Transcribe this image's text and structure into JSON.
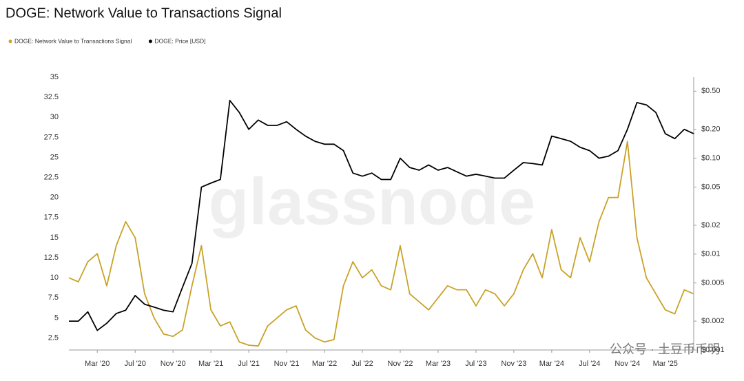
{
  "chart_data": {
    "type": "line",
    "title": "DOGE: Network Value to Transactions Signal",
    "watermark": "glassnode",
    "source_watermark": "公众号 · 土豆币币明",
    "legend": "top-left",
    "grid": false,
    "y2log": true,
    "x": [
      "2019-12",
      "2020-01",
      "2020-02",
      "2020-03",
      "2020-04",
      "2020-05",
      "2020-06",
      "2020-07",
      "2020-08",
      "2020-09",
      "2020-10",
      "2020-11",
      "2020-12",
      "2021-01",
      "2021-02",
      "2021-03",
      "2021-04",
      "2021-05",
      "2021-06",
      "2021-07",
      "2021-08",
      "2021-09",
      "2021-10",
      "2021-11",
      "2021-12",
      "2022-01",
      "2022-02",
      "2022-03",
      "2022-04",
      "2022-05",
      "2022-06",
      "2022-07",
      "2022-08",
      "2022-09",
      "2022-10",
      "2022-11",
      "2022-12",
      "2023-01",
      "2023-02",
      "2023-03",
      "2023-04",
      "2023-05",
      "2023-06",
      "2023-07",
      "2023-08",
      "2023-09",
      "2023-10",
      "2023-11",
      "2023-12",
      "2024-01",
      "2024-02",
      "2024-03",
      "2024-04",
      "2024-05",
      "2024-06",
      "2024-07",
      "2024-08",
      "2024-09",
      "2024-10",
      "2024-11",
      "2024-12",
      "2025-01",
      "2025-02",
      "2025-03",
      "2025-04",
      "2025-05",
      "2025-06"
    ],
    "xlim": [
      "2019-12",
      "2025-06"
    ],
    "xticks": [
      {
        "value": "2020-03",
        "label": "Mar '20"
      },
      {
        "value": "2020-07",
        "label": "Jul '20"
      },
      {
        "value": "2020-11",
        "label": "Nov '20"
      },
      {
        "value": "2021-03",
        "label": "Mar '21"
      },
      {
        "value": "2021-07",
        "label": "Jul '21"
      },
      {
        "value": "2021-11",
        "label": "Nov '21"
      },
      {
        "value": "2022-03",
        "label": "Mar '22"
      },
      {
        "value": "2022-07",
        "label": "Jul '22"
      },
      {
        "value": "2022-11",
        "label": "Nov '22"
      },
      {
        "value": "2023-03",
        "label": "Mar '23"
      },
      {
        "value": "2023-07",
        "label": "Jul '23"
      },
      {
        "value": "2023-11",
        "label": "Nov '23"
      },
      {
        "value": "2024-03",
        "label": "Mar '24"
      },
      {
        "value": "2024-07",
        "label": "Jul '24"
      },
      {
        "value": "2024-11",
        "label": "Nov '24"
      },
      {
        "value": "2025-03",
        "label": "Mar '25"
      }
    ],
    "ylim": [
      1,
      35
    ],
    "yticks": [
      2.5,
      5,
      7.5,
      10,
      12.5,
      15,
      17.5,
      20,
      22.5,
      25,
      27.5,
      30,
      32.5,
      35
    ],
    "y2lim": [
      0.001,
      0.7
    ],
    "y2ticks": [
      {
        "value": 0.001,
        "label": "$0.001"
      },
      {
        "value": 0.002,
        "label": "$0.002"
      },
      {
        "value": 0.005,
        "label": "$0.005"
      },
      {
        "value": 0.01,
        "label": "$0.01"
      },
      {
        "value": 0.02,
        "label": "$0.02"
      },
      {
        "value": 0.05,
        "label": "$0.05"
      },
      {
        "value": 0.1,
        "label": "$0.10"
      },
      {
        "value": 0.2,
        "label": "$0.20"
      },
      {
        "value": 0.5,
        "label": "$0.50"
      }
    ],
    "series": [
      {
        "name": "DOGE: Network Value to Transactions Signal",
        "color": "#c9a227",
        "values": [
          10,
          9.5,
          12,
          13,
          9,
          14,
          17,
          15,
          8,
          5,
          3,
          2.7,
          3.5,
          9,
          14,
          6,
          4,
          4.5,
          2,
          1.6,
          1.5,
          4,
          5,
          6,
          6.5,
          3.5,
          2.5,
          2,
          2.3,
          9,
          12,
          10,
          11,
          9,
          8.5,
          14,
          8,
          7,
          6,
          7.5,
          9,
          8.5,
          8.5,
          6.5,
          8.5,
          8,
          6.5,
          8,
          11,
          13,
          10,
          16,
          11,
          10,
          15,
          12,
          17,
          20,
          20,
          27,
          15,
          10,
          8,
          6,
          5.5,
          8.5,
          8
        ]
      },
      {
        "name": "DOGE: Price [USD]",
        "color": "#000000",
        "axis": "y2",
        "values": [
          0.002,
          0.002,
          0.0025,
          0.0016,
          0.0019,
          0.0024,
          0.0026,
          0.0037,
          0.003,
          0.0028,
          0.0026,
          0.0025,
          0.0045,
          0.008,
          0.05,
          0.055,
          0.06,
          0.4,
          0.3,
          0.2,
          0.25,
          0.22,
          0.22,
          0.24,
          0.2,
          0.17,
          0.15,
          0.14,
          0.14,
          0.12,
          0.07,
          0.065,
          0.07,
          0.06,
          0.06,
          0.1,
          0.08,
          0.075,
          0.085,
          0.075,
          0.08,
          0.072,
          0.065,
          0.068,
          0.065,
          0.062,
          0.062,
          0.075,
          0.09,
          0.088,
          0.085,
          0.17,
          0.16,
          0.15,
          0.13,
          0.12,
          0.1,
          0.105,
          0.12,
          0.2,
          0.38,
          0.36,
          0.3,
          0.18,
          0.16,
          0.2,
          0.18
        ]
      }
    ]
  }
}
